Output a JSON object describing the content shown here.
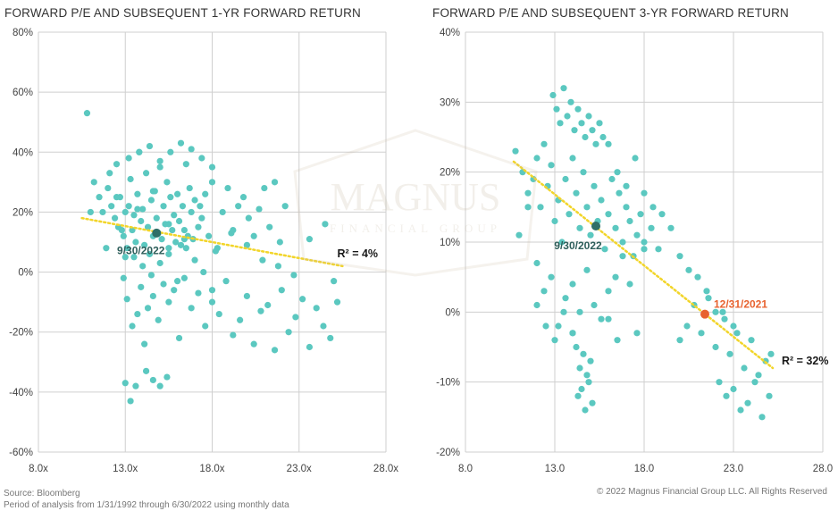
{
  "colors": {
    "dot": "#5bc8c0",
    "grid": "#cfcfcf",
    "trend": "#f2d52a",
    "highlight_dark": "#2f6f68",
    "highlight_orange": "#e8622f"
  },
  "watermark": {
    "line1": "MAGNUS",
    "line2": "FINANCIAL GROUP"
  },
  "footer": {
    "source": "Source: Bloomberg",
    "period": "Period of analysis from 1/31/1992 through 6/30/2022 using monthly data",
    "copyright": "© 2022 Magnus Financial Group LLC. All Rights Reserved"
  },
  "chart_data": [
    {
      "type": "scatter",
      "title": "FORWARD P/E AND SUBSEQUENT 1-YR FORWARD RETURN",
      "xlabel": "",
      "ylabel": "",
      "xlim": [
        8,
        28
      ],
      "ylim": [
        -60,
        80
      ],
      "x_ticks": [
        8,
        13,
        18,
        23,
        28
      ],
      "x_tick_labels": [
        "8.0x",
        "13.0x",
        "18.0x",
        "23.0x",
        "28.0x"
      ],
      "y_ticks": [
        -60,
        -40,
        -20,
        0,
        20,
        40,
        60,
        80
      ],
      "y_tick_labels": [
        "-60%",
        "-40%",
        "-20%",
        "0%",
        "20%",
        "40%",
        "60%",
        "80%"
      ],
      "trendline": {
        "x": [
          10.5,
          25.5
        ],
        "y": [
          18,
          2
        ]
      },
      "r2_label": "R² = 4%",
      "r2_at": {
        "x": 25.2,
        "y": 5
      },
      "highlights": [
        {
          "label": "9/30/2022",
          "x": 14.8,
          "y": 13,
          "color": "dark",
          "label_at": {
            "x": 13.9,
            "y": 6
          }
        }
      ],
      "points": {
        "x": [
          10.8,
          11.2,
          11.5,
          11.7,
          12.0,
          12.2,
          12.4,
          12.5,
          12.6,
          12.7,
          12.9,
          13.0,
          13.1,
          13.2,
          13.3,
          13.4,
          13.5,
          13.6,
          13.7,
          13.8,
          13.9,
          14.0,
          14.1,
          14.2,
          14.3,
          14.4,
          14.5,
          14.6,
          14.7,
          14.8,
          14.9,
          15.0,
          15.1,
          15.2,
          15.3,
          15.4,
          15.5,
          15.6,
          15.7,
          15.8,
          15.9,
          16.0,
          16.1,
          16.2,
          16.3,
          16.4,
          16.5,
          16.6,
          16.7,
          16.8,
          16.9,
          17.0,
          17.2,
          17.4,
          17.6,
          17.8,
          18.0,
          18.3,
          18.6,
          18.9,
          19.2,
          19.5,
          19.8,
          20.1,
          20.4,
          20.7,
          21.0,
          21.3,
          21.6,
          21.9,
          22.2,
          12.9,
          13.1,
          13.4,
          13.7,
          13.9,
          14.1,
          14.3,
          14.6,
          14.9,
          15.2,
          15.5,
          15.8,
          16.1,
          16.4,
          16.8,
          17.2,
          17.6,
          18.0,
          18.4,
          18.8,
          19.2,
          19.6,
          20.0,
          20.4,
          20.8,
          21.2,
          21.6,
          22.0,
          22.4,
          22.8,
          23.2,
          23.6,
          24.0,
          24.4,
          24.8,
          25.2,
          13.0,
          13.3,
          13.6,
          14.2,
          14.6,
          15.0,
          15.4,
          12.1,
          12.5,
          13.0,
          13.5,
          14.0,
          14.5,
          15.0,
          15.5,
          16.0,
          16.5,
          17.0,
          17.5,
          18.0,
          13.2,
          13.8,
          14.4,
          15.0,
          15.6,
          16.2,
          16.8,
          17.4,
          18.0,
          11.0,
          11.9,
          12.8,
          13.7,
          14.6,
          15.5,
          16.4,
          17.3,
          18.2,
          19.1,
          20.0,
          20.9,
          21.8,
          22.7,
          23.6,
          24.5,
          25.0
        ],
        "y": [
          53,
          30,
          25,
          20,
          28,
          22,
          18,
          36,
          15,
          25,
          12,
          5,
          8,
          22,
          31,
          14,
          19,
          10,
          26,
          40,
          17,
          21,
          9,
          33,
          15,
          6,
          24,
          12,
          27,
          18,
          13,
          35,
          11,
          22,
          16,
          30,
          8,
          25,
          14,
          19,
          10,
          26,
          17,
          9,
          22,
          14,
          36,
          12,
          28,
          20,
          11,
          24,
          15,
          18,
          26,
          12,
          30,
          8,
          20,
          28,
          14,
          22,
          25,
          18,
          12,
          21,
          28,
          15,
          30,
          10,
          22,
          -2,
          -9,
          -18,
          -14,
          -5,
          -24,
          -12,
          -8,
          -16,
          -4,
          -10,
          -6,
          -22,
          -2,
          -12,
          -7,
          -18,
          -10,
          -14,
          -3,
          -21,
          -16,
          -8,
          -24,
          -13,
          -11,
          -26,
          -6,
          -20,
          -15,
          -9,
          -25,
          -12,
          -18,
          -22,
          -10,
          -37,
          -43,
          -38,
          -33,
          -36,
          -38,
          -35,
          33,
          25,
          20,
          5,
          2,
          -1,
          3,
          6,
          -3,
          8,
          4,
          0,
          -6,
          38,
          40,
          42,
          37,
          40,
          43,
          41,
          38,
          35,
          20,
          8,
          14,
          21,
          27,
          16,
          11,
          22,
          7,
          13,
          9,
          4,
          2,
          -1,
          11,
          16,
          -3
        ]
      }
    },
    {
      "type": "scatter",
      "title": "FORWARD P/E AND SUBSEQUENT 3-YR FORWARD RETURN",
      "xlabel": "",
      "ylabel": "",
      "xlim": [
        8,
        28
      ],
      "ylim": [
        -20,
        40
      ],
      "x_ticks": [
        8,
        13,
        18,
        23,
        28
      ],
      "x_tick_labels": [
        "8.0",
        "13.0",
        "18.0",
        "23.0",
        "28.0"
      ],
      "y_ticks": [
        -20,
        -10,
        0,
        10,
        20,
        30,
        40
      ],
      "y_tick_labels": [
        "-20%",
        "-10%",
        "0%",
        "10%",
        "20%",
        "30%",
        "40%"
      ],
      "trendline": {
        "x": [
          10.7,
          25.2
        ],
        "y": [
          21.5,
          -8
        ]
      },
      "r2_label": "R² = 32%",
      "r2_at": {
        "x": 25.7,
        "y": -7.5
      },
      "highlights": [
        {
          "label": "9/30/2022",
          "x": 15.3,
          "y": 12.3,
          "color": "dark",
          "label_at": {
            "x": 14.3,
            "y": 9
          }
        },
        {
          "label": "12/31/2021",
          "x": 21.4,
          "y": -0.3,
          "color": "orange",
          "label_at": {
            "x": 23.4,
            "y": 0.6
          }
        }
      ],
      "points": {
        "x": [
          10.8,
          11.2,
          11.5,
          11.8,
          12.0,
          12.2,
          12.4,
          12.6,
          12.8,
          13.0,
          13.2,
          13.4,
          13.6,
          13.8,
          14.0,
          14.2,
          14.4,
          14.6,
          14.8,
          15.0,
          15.2,
          15.4,
          15.6,
          15.8,
          16.0,
          16.2,
          16.4,
          16.6,
          16.8,
          17.0,
          17.2,
          17.4,
          17.6,
          17.8,
          18.0,
          12.9,
          13.1,
          13.3,
          13.5,
          13.7,
          13.9,
          14.1,
          14.3,
          14.5,
          14.7,
          14.9,
          15.1,
          15.3,
          15.5,
          15.7,
          12.0,
          12.4,
          12.8,
          13.2,
          13.6,
          14.0,
          14.4,
          14.8,
          15.2,
          15.6,
          16.0,
          16.4,
          16.8,
          17.2,
          17.6,
          18.0,
          18.4,
          18.8,
          16.0,
          16.5,
          17.0,
          17.5,
          18.0,
          18.5,
          19.0,
          19.5,
          20.0,
          20.5,
          21.0,
          21.5,
          22.0,
          22.5,
          23.0,
          20.0,
          20.4,
          20.8,
          21.2,
          21.6,
          22.0,
          22.4,
          22.8,
          23.2,
          23.6,
          24.0,
          24.4,
          24.8,
          25.1,
          22.2,
          22.6,
          23.0,
          23.4,
          23.8,
          24.2,
          24.6,
          25.0,
          14.0,
          14.2,
          14.4,
          14.6,
          14.8,
          15.0,
          14.3,
          14.5,
          14.7,
          14.9,
          15.1,
          12.0,
          12.5,
          13.0,
          13.5,
          14.0,
          11.0,
          11.5,
          16.0,
          16.5
        ],
        "y": [
          23,
          20,
          17,
          19,
          22,
          15,
          24,
          18,
          21,
          13,
          16,
          10,
          19,
          14,
          22,
          17,
          12,
          20,
          15,
          11,
          18,
          13,
          16,
          9,
          14,
          19,
          12,
          17,
          10,
          15,
          13,
          8,
          11,
          14,
          9,
          31,
          29,
          27,
          32,
          28,
          30,
          26,
          29,
          27,
          25,
          28,
          26,
          24,
          27,
          25,
          7,
          3,
          5,
          -2,
          2,
          4,
          0,
          6,
          1,
          -1,
          3,
          5,
          8,
          4,
          -3,
          10,
          12,
          9,
          24,
          20,
          18,
          22,
          17,
          15,
          14,
          12,
          8,
          6,
          5,
          3,
          0,
          -1,
          -2,
          -4,
          -2,
          1,
          -3,
          2,
          -5,
          0,
          -6,
          -3,
          -8,
          -4,
          -9,
          -7,
          -6,
          -10,
          -12,
          -11,
          -14,
          -13,
          -10,
          -15,
          -12,
          -3,
          -5,
          -8,
          -6,
          -9,
          -7,
          -12,
          -11,
          -14,
          -10,
          -13,
          1,
          -2,
          -4,
          0,
          -3,
          11,
          15,
          -1,
          -4
        ]
      }
    }
  ]
}
